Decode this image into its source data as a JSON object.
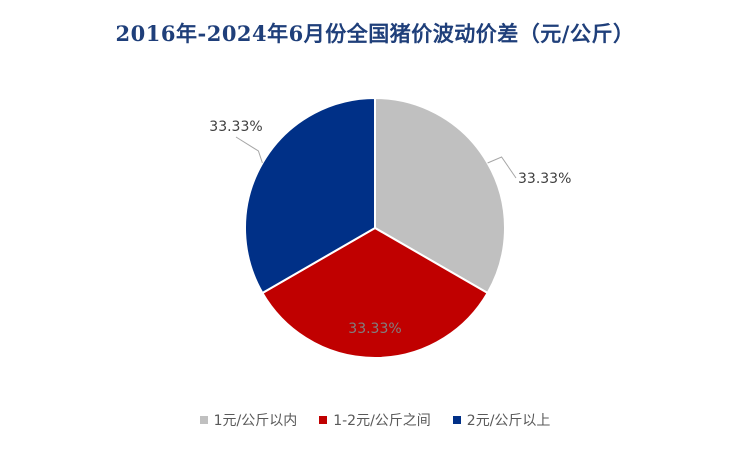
{
  "chart_data": {
    "type": "pie",
    "title": "2016年-2024年6月份全国猪价波动价差（元/公斤）",
    "categories": [
      "1元/公斤以内",
      "1-2元/公斤之间",
      "2元/公斤以上"
    ],
    "values": [
      33.33,
      33.33,
      33.33
    ],
    "labels": [
      "33.33%",
      "33.33%",
      "33.33%"
    ],
    "colors": [
      "#c0c0c0",
      "#c00000",
      "#003087"
    ],
    "legend_position": "bottom"
  }
}
